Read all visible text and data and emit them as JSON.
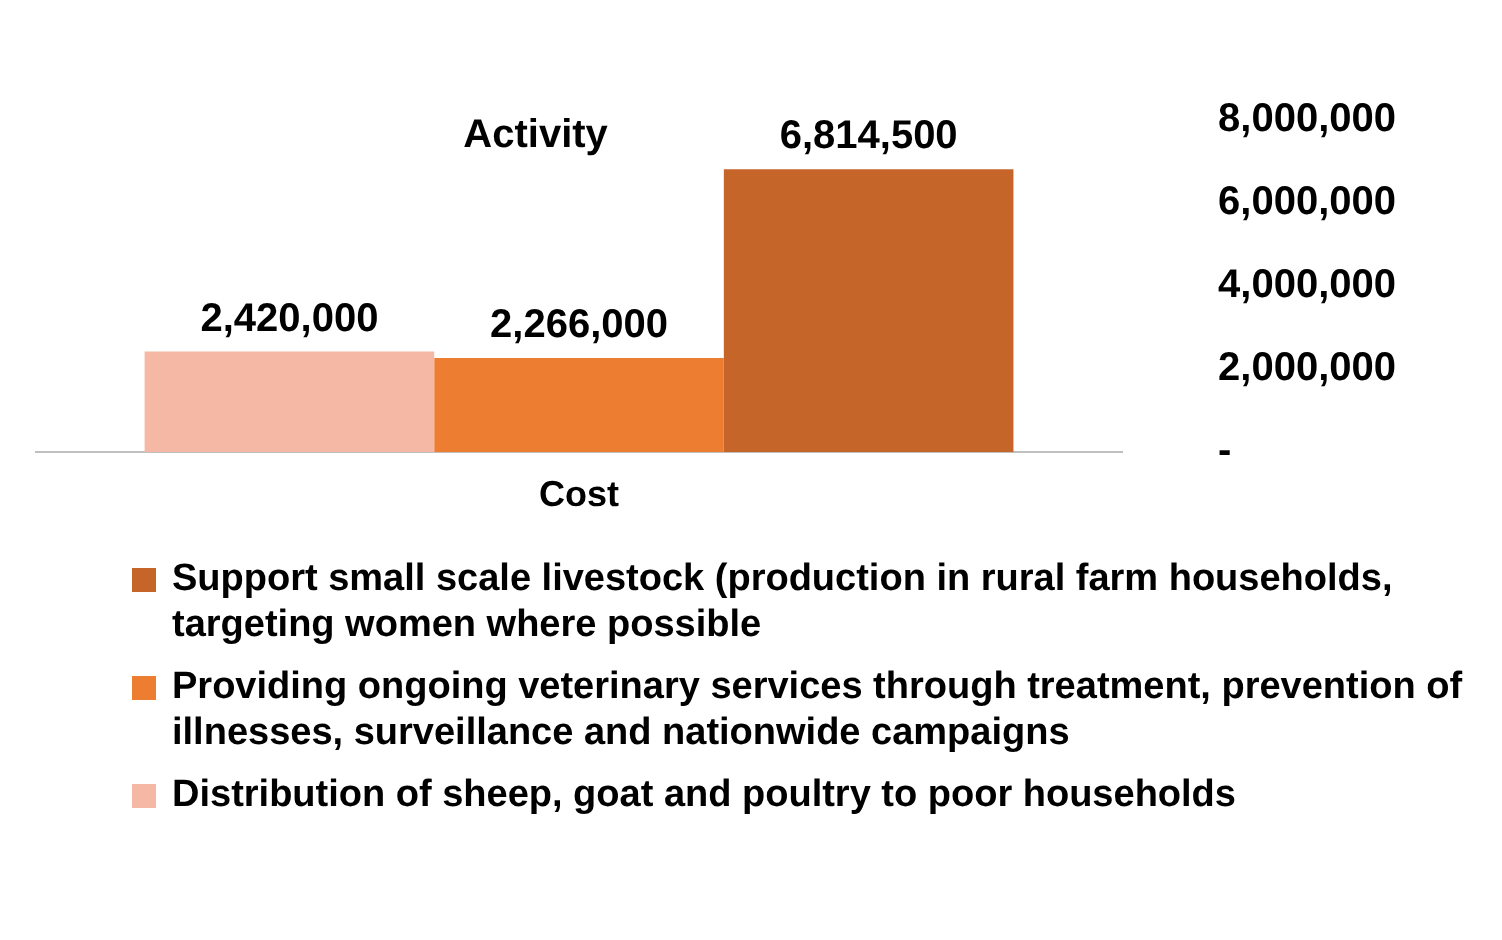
{
  "chart_data": {
    "type": "bar",
    "title": "Activity",
    "categories": [
      "Cost"
    ],
    "series": [
      {
        "name": "Distribution of sheep, goat and poultry to poor households",
        "color": "#f4b8a4",
        "values": [
          2420000
        ],
        "value_labels": [
          "2,420,000"
        ]
      },
      {
        "name": "Providing ongoing veterinary services through treatment, prevention of illnesses, surveillance and nationwide campaigns",
        "color": "#ed7d31",
        "values": [
          2266000
        ],
        "value_labels": [
          "2,266,000"
        ]
      },
      {
        "name": "Support small scale livestock (production in rural farm households, targeting women where possible",
        "color": "#c5652a",
        "values": [
          6814500
        ],
        "value_labels": [
          "6,814,500"
        ]
      }
    ],
    "ylim": [
      0,
      8000000
    ],
    "yticks": [
      {
        "value": 0,
        "label": "-"
      },
      {
        "value": 2000000,
        "label": "2,000,000"
      },
      {
        "value": 4000000,
        "label": "4,000,000"
      },
      {
        "value": 6000000,
        "label": "6,000,000"
      },
      {
        "value": 8000000,
        "label": "8,000,000"
      }
    ],
    "grid": false,
    "legend": "bottom"
  }
}
